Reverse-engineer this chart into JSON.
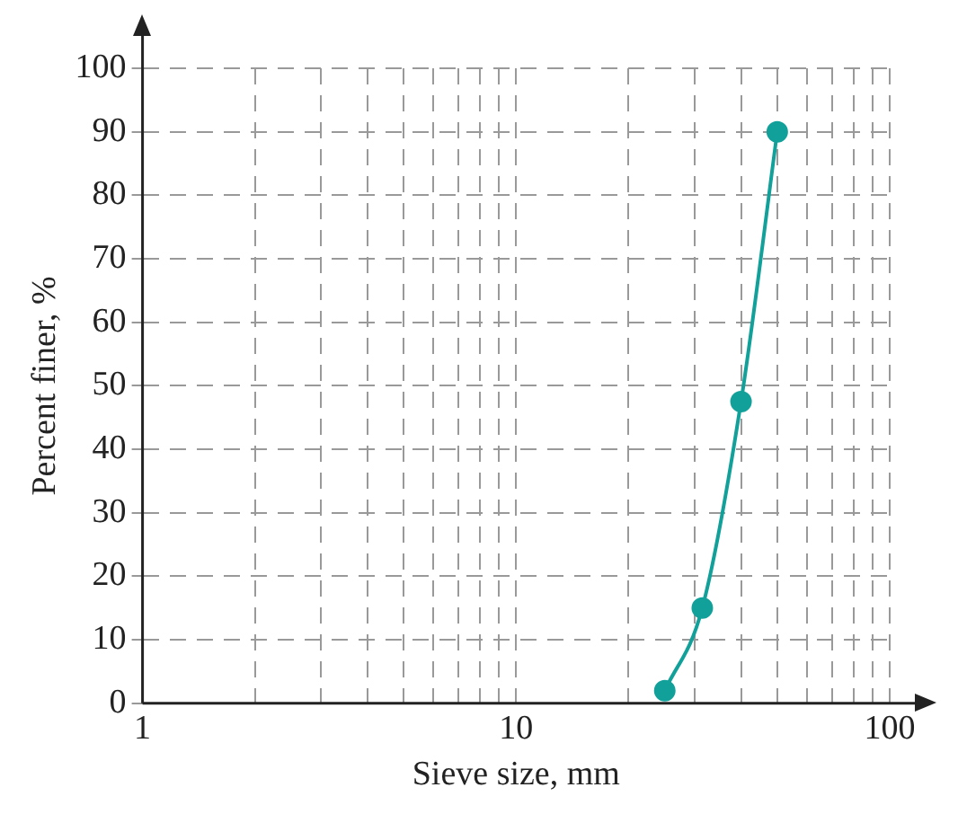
{
  "chart_data": {
    "type": "line",
    "xlabel": "Sieve size, mm",
    "ylabel": "Percent finer, %",
    "x": [
      25,
      31.5,
      40,
      50
    ],
    "series": [
      {
        "color": "#12a19a",
        "values": [
          2,
          15,
          47.5,
          90
        ]
      }
    ],
    "log": "x",
    "xlim": [
      1,
      100
    ],
    "xticks": [
      1,
      {
        "value": 2,
        "label": null
      },
      {
        "value": 3,
        "label": null
      },
      {
        "value": 4,
        "label": null
      },
      {
        "value": 5,
        "label": null
      },
      {
        "value": 6,
        "label": null
      },
      {
        "value": 7,
        "label": null
      },
      {
        "value": 8,
        "label": null
      },
      {
        "value": 9,
        "label": null
      },
      10,
      {
        "value": 20,
        "label": null
      },
      {
        "value": 30,
        "label": null
      },
      {
        "value": 40,
        "label": null
      },
      {
        "value": 50,
        "label": null
      },
      {
        "value": 60,
        "label": null
      },
      {
        "value": 70,
        "label": null
      },
      {
        "value": 80,
        "label": null
      },
      {
        "value": 90,
        "label": null
      },
      100
    ],
    "ylim": [
      0,
      100
    ],
    "yticks": [
      0,
      10,
      20,
      30,
      40,
      50,
      60,
      70,
      80,
      90,
      100
    ],
    "grid": true,
    "marker": "circle",
    "line_style": "solid",
    "legend": false
  }
}
